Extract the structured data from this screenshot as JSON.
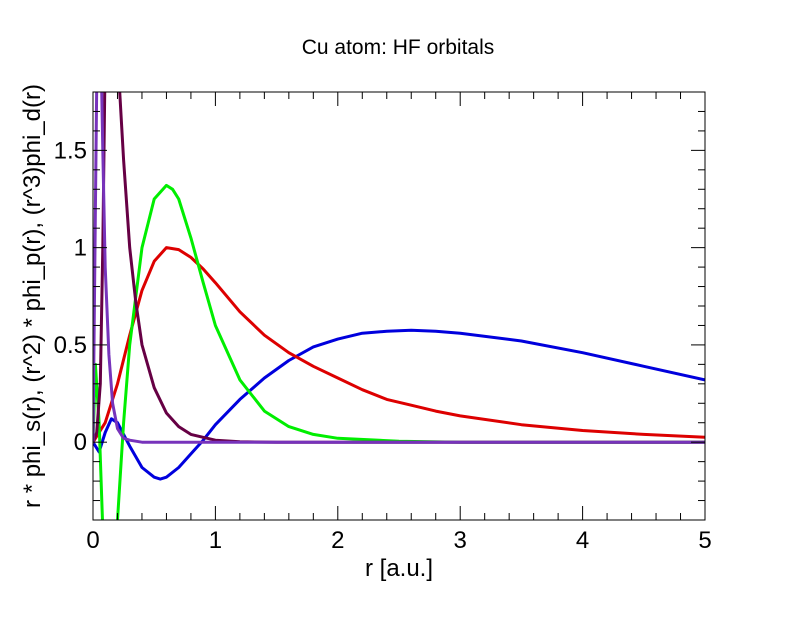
{
  "chart_data": {
    "type": "line",
    "title": "Cu atom: HF orbitals",
    "xlabel": "r [a.u.]",
    "ylabel": "r * phi_s(r),  (r^2) * phi_p(r), (r^3)phi_d(r)",
    "xlim": [
      0,
      5
    ],
    "ylim": [
      -0.4,
      1.8
    ],
    "x_ticks": [
      0,
      1,
      2,
      3,
      4,
      5
    ],
    "x_tick_labels": [
      "0",
      "1",
      "2",
      "3",
      "4",
      "5"
    ],
    "y_ticks": [
      0,
      0.5,
      1,
      1.5
    ],
    "y_tick_labels": [
      "0",
      "0.5",
      "1",
      "1.5"
    ],
    "grid": false,
    "legend": "none",
    "series": [
      {
        "color": "#0000dd",
        "x": [
          0,
          0.05,
          0.1,
          0.15,
          0.2,
          0.3,
          0.4,
          0.5,
          0.55,
          0.6,
          0.7,
          0.8,
          0.9,
          1.0,
          1.2,
          1.4,
          1.6,
          1.8,
          2.0,
          2.2,
          2.4,
          2.6,
          2.8,
          3.0,
          3.5,
          4.0,
          4.5,
          5.0
        ],
        "y": [
          0,
          -0.05,
          0.05,
          0.12,
          0.1,
          -0.02,
          -0.13,
          -0.18,
          -0.19,
          -0.18,
          -0.13,
          -0.06,
          0.01,
          0.09,
          0.22,
          0.33,
          0.42,
          0.49,
          0.53,
          0.56,
          0.57,
          0.575,
          0.57,
          0.56,
          0.52,
          0.46,
          0.39,
          0.32
        ]
      },
      {
        "color": "#dd0000",
        "x": [
          0,
          0.1,
          0.2,
          0.3,
          0.4,
          0.5,
          0.6,
          0.7,
          0.8,
          0.9,
          1.0,
          1.2,
          1.4,
          1.6,
          1.8,
          2.0,
          2.2,
          2.4,
          2.6,
          2.8,
          3.0,
          3.5,
          4.0,
          4.5,
          5.0
        ],
        "y": [
          0,
          0.1,
          0.3,
          0.55,
          0.78,
          0.93,
          1.0,
          0.99,
          0.95,
          0.89,
          0.82,
          0.67,
          0.55,
          0.46,
          0.39,
          0.33,
          0.27,
          0.22,
          0.19,
          0.16,
          0.135,
          0.09,
          0.06,
          0.04,
          0.025
        ]
      },
      {
        "color": "#00ee00",
        "x": [
          0,
          0.02,
          0.05,
          0.08,
          0.12,
          0.16,
          0.2,
          0.25,
          0.3,
          0.4,
          0.5,
          0.6,
          0.65,
          0.7,
          0.8,
          0.9,
          1.0,
          1.2,
          1.4,
          1.6,
          1.8,
          2.0,
          2.5,
          3.0,
          4.0,
          5.0
        ],
        "y": [
          0,
          0.4,
          0.1,
          -0.45,
          -0.7,
          -0.7,
          -0.4,
          0.1,
          0.5,
          1.0,
          1.25,
          1.32,
          1.3,
          1.25,
          1.05,
          0.82,
          0.6,
          0.32,
          0.16,
          0.08,
          0.04,
          0.02,
          0.005,
          0,
          0,
          0
        ]
      },
      {
        "color": "#660044",
        "x": [
          0,
          0.03,
          0.06,
          0.08,
          0.1,
          0.13,
          0.16,
          0.2,
          0.25,
          0.3,
          0.35,
          0.4,
          0.5,
          0.6,
          0.7,
          0.8,
          1.0,
          1.2,
          1.5,
          2.0,
          5.0
        ],
        "y": [
          0,
          0.05,
          0.3,
          1.0,
          2.0,
          2.8,
          2.6,
          2.0,
          1.45,
          1.0,
          0.72,
          0.5,
          0.28,
          0.15,
          0.08,
          0.04,
          0.01,
          0.002,
          0,
          0,
          0
        ]
      },
      {
        "color": "#7733bb",
        "x": [
          0,
          0.02,
          0.04,
          0.06,
          0.08,
          0.1,
          0.13,
          0.16,
          0.2,
          0.25,
          0.3,
          0.4,
          0.5,
          1.0,
          5.0
        ],
        "y": [
          0,
          1.2,
          2.4,
          2.2,
          1.5,
          0.9,
          0.45,
          0.2,
          0.07,
          0.02,
          0.01,
          0,
          0,
          0,
          0
        ]
      }
    ]
  }
}
